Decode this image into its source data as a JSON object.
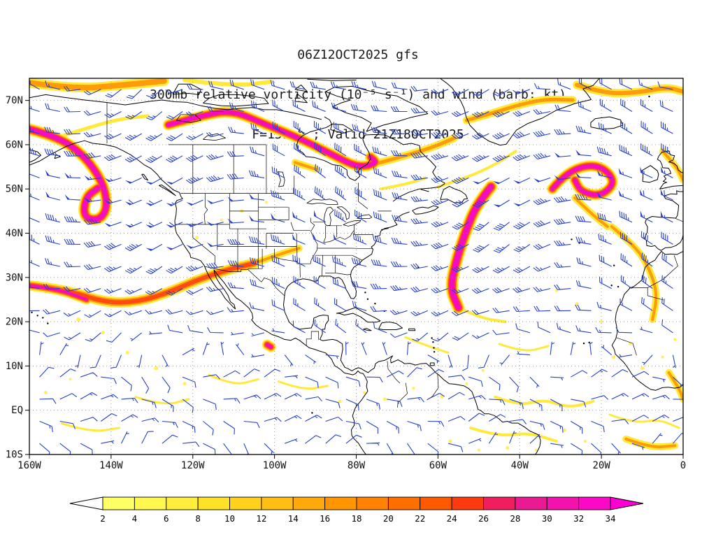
{
  "title": {
    "line1": "06Z12OCT2025 gfs",
    "line2": "300mb relative vorticity (10⁻⁵ s⁻¹) and wind (barb; kt)",
    "line3": "F=159 h ; Valid 21Z18OCT2025"
  },
  "axes": {
    "lat_labels": [
      "70N",
      "60N",
      "50N",
      "40N",
      "30N",
      "20N",
      "10N",
      "EQ",
      "10S"
    ],
    "lat_values": [
      70,
      60,
      50,
      40,
      30,
      20,
      10,
      0,
      -10
    ],
    "lon_labels": [
      "160W",
      "140W",
      "120W",
      "100W",
      "80W",
      "60W",
      "40W",
      "20W",
      "0"
    ],
    "lon_values": [
      -160,
      -140,
      -120,
      -100,
      -80,
      -60,
      -40,
      -20,
      0
    ],
    "lat_range": [
      -10,
      75
    ],
    "lon_range": [
      -160,
      0
    ]
  },
  "colorbar": {
    "labels": [
      "2",
      "4",
      "6",
      "8",
      "10",
      "12",
      "14",
      "16",
      "18",
      "20",
      "22",
      "24",
      "26",
      "28",
      "30",
      "32",
      "34"
    ],
    "levels": [
      2,
      4,
      6,
      8,
      10,
      12,
      14,
      16,
      18,
      20,
      22,
      24,
      26,
      28,
      30,
      32,
      34
    ],
    "colors": [
      "#ffff66",
      "#fff84e",
      "#ffee3c",
      "#ffe228",
      "#ffd21e",
      "#ffbe14",
      "#ffaa0a",
      "#ff9600",
      "#ff8200",
      "#ff6e00",
      "#ff5a00",
      "#ff3a10",
      "#f01e5f",
      "#e91a92",
      "#f312ae",
      "#fd08c6"
    ],
    "under_color": "#ffffff",
    "over_color": "#ff00d4"
  },
  "style": {
    "barb_color": "#2840cc",
    "coast_color": "#000000",
    "grid_color": "#909090",
    "frame_color": "#000000",
    "vort_yellow": "#ffe93a",
    "vort_orange": "#ff9b08",
    "vort_red": "#ff4a10",
    "vort_magenta": "#f50cc0"
  },
  "chart_data": {
    "type": "heatmap",
    "model_run": "06Z12OCT2025 gfs",
    "field": "300mb relative vorticity",
    "units": "10⁻⁵ s⁻¹",
    "wind": "barb (kt)",
    "forecast_hour": 159,
    "valid": "21Z18OCT2025",
    "lat_range": [
      -10,
      75
    ],
    "lon_range": [
      -160,
      0
    ],
    "shaded_levels": [
      2,
      4,
      6,
      8,
      10,
      12,
      14,
      16,
      18,
      20,
      22,
      24,
      26,
      28,
      30,
      32,
      34
    ],
    "legend_position": "bottom",
    "grid": true,
    "features": [
      {
        "name": "arctic-band-west",
        "intensity": 2,
        "width": 8,
        "path": [
          [
            -160,
            74
          ],
          [
            -149,
            72.6
          ],
          [
            -138,
            73.4
          ],
          [
            -127,
            74.4
          ]
        ]
      },
      {
        "name": "arctic-band-center",
        "intensity": 1,
        "width": 6,
        "path": [
          [
            -122,
            74.6
          ],
          [
            -110,
            73.2
          ],
          [
            -101,
            74.2
          ]
        ]
      },
      {
        "name": "gulf-of-alaska-hook",
        "intensity": 4,
        "width": 7,
        "path": [
          [
            -160,
            63.5
          ],
          [
            -153,
            61.8
          ],
          [
            -146.5,
            57.5
          ],
          [
            -142,
            51.5
          ],
          [
            -140.8,
            45.8
          ],
          [
            -143,
            42.8
          ],
          [
            -146.8,
            43.6
          ],
          [
            -146.2,
            48.2
          ],
          [
            -143.2,
            50.2
          ]
        ]
      },
      {
        "name": "alaska-interior-band",
        "intensity": 1,
        "width": 5,
        "path": [
          [
            -152,
            62
          ],
          [
            -145,
            64
          ],
          [
            -138,
            65.8
          ],
          [
            -131,
            66.5
          ]
        ]
      },
      {
        "name": "canada-arc",
        "intensity": 4,
        "width": 6,
        "path": [
          [
            -126,
            64.5
          ],
          [
            -118,
            66.5
          ],
          [
            -110.5,
            67.8
          ],
          [
            -102,
            64.5
          ],
          [
            -94,
            61.5
          ],
          [
            -86,
            57.8
          ],
          [
            -79.5,
            54.8
          ],
          [
            -74.8,
            55.8
          ],
          [
            -76.5,
            57.2
          ]
        ]
      },
      {
        "name": "canada-arc-tail",
        "intensity": 2,
        "width": 5,
        "path": [
          [
            -74.8,
            55.8
          ],
          [
            -68,
            57.5
          ],
          [
            -61,
            59.5
          ],
          [
            -56,
            61.5
          ]
        ]
      },
      {
        "name": "greenland-south-band",
        "intensity": 2,
        "width": 5,
        "path": [
          [
            -53,
            65.5
          ],
          [
            -47,
            67
          ],
          [
            -41,
            68.8
          ],
          [
            -34,
            70.3
          ],
          [
            -27,
            70.1
          ]
        ]
      },
      {
        "name": "greenland-east-band",
        "intensity": 2,
        "width": 6,
        "path": [
          [
            -26,
            73.5
          ],
          [
            -19,
            71.5
          ],
          [
            -11,
            71.8
          ],
          [
            -4,
            73
          ],
          [
            0,
            72
          ]
        ]
      },
      {
        "name": "labrador-yellow",
        "intensity": 1,
        "width": 4,
        "path": [
          [
            -60,
            50.5
          ],
          [
            -53,
            52.5
          ],
          [
            -46,
            55.5
          ],
          [
            -41,
            58.5
          ]
        ]
      },
      {
        "name": "atlantic-trough",
        "intensity": 4,
        "width": 8,
        "path": [
          [
            -47,
            50.5
          ],
          [
            -50.5,
            46.5
          ],
          [
            -53,
            41
          ],
          [
            -55.5,
            34
          ],
          [
            -57,
            27.5
          ],
          [
            -55,
            23.2
          ]
        ]
      },
      {
        "name": "trough-outflow",
        "intensity": 1,
        "width": 4,
        "path": [
          [
            -55,
            23.2
          ],
          [
            -49.5,
            20.8
          ],
          [
            -43.5,
            20
          ]
        ]
      },
      {
        "name": "ne-atlantic-spiral",
        "intensity": 4,
        "width": 6,
        "path": [
          [
            -32,
            50
          ],
          [
            -28.5,
            54
          ],
          [
            -21,
            55.8
          ],
          [
            -16.3,
            51.8
          ],
          [
            -20,
            48.3
          ],
          [
            -25,
            49.3
          ],
          [
            -26.5,
            52
          ]
        ]
      },
      {
        "name": "spiral-tail",
        "intensity": 2,
        "width": 4,
        "path": [
          [
            -26.5,
            48
          ],
          [
            -22,
            44
          ],
          [
            -18.5,
            41.5
          ]
        ]
      },
      {
        "name": "uk-streak",
        "intensity": 2,
        "width": 4,
        "path": [
          [
            -5,
            58.5
          ],
          [
            -1.5,
            55
          ],
          [
            0,
            52
          ]
        ]
      },
      {
        "name": "pacific-jet",
        "intensity": 3,
        "width": 6,
        "path": [
          [
            -160,
            28.2
          ],
          [
            -151,
            27.2
          ],
          [
            -141,
            24.2
          ],
          [
            -133,
            24.6
          ],
          [
            -126,
            26.6
          ],
          [
            -119,
            29.4
          ],
          [
            -112,
            31.6
          ],
          [
            -105,
            33.2
          ]
        ]
      },
      {
        "name": "pacific-jet-core",
        "intensity": 4,
        "width": 4,
        "path": [
          [
            -160,
            28.2
          ],
          [
            -153,
            27.4
          ],
          [
            -146,
            25
          ]
        ]
      },
      {
        "name": "plains-tail",
        "intensity": 2,
        "width": 4,
        "path": [
          [
            -105,
            33.2
          ],
          [
            -99,
            35.2
          ],
          [
            -94,
            36.6
          ]
        ]
      },
      {
        "name": "iberia-africa-streak",
        "intensity": 2,
        "width": 4,
        "path": [
          [
            -17.5,
            41.5
          ],
          [
            -11.5,
            37
          ],
          [
            -8,
            31.5
          ],
          [
            -6.3,
            26
          ],
          [
            -7.5,
            20.5
          ]
        ]
      },
      {
        "name": "mexico-vortex",
        "intensity": 4,
        "width": 5,
        "path": [
          [
            -101.8,
            14.8
          ],
          [
            -100.9,
            14.3
          ]
        ]
      },
      {
        "name": "itcz-atlantic",
        "intensity": 1,
        "width": 4,
        "path": [
          [
            -46,
            3
          ],
          [
            -40,
            1
          ],
          [
            -34,
            2.5
          ],
          [
            -28,
            0.5
          ],
          [
            -22,
            2
          ]
        ]
      },
      {
        "name": "itcz-atlantic2",
        "intensity": 1,
        "width": 3,
        "path": [
          [
            -18,
            -1
          ],
          [
            -12,
            -3
          ],
          [
            -6,
            -2
          ],
          [
            -1,
            -4
          ]
        ]
      },
      {
        "name": "brazil-band",
        "intensity": 1,
        "width": 4,
        "path": [
          [
            -52,
            -4
          ],
          [
            -45,
            -6
          ],
          [
            -38,
            -5
          ],
          [
            -31,
            -7
          ]
        ]
      },
      {
        "name": "s-atlantic-streak",
        "intensity": 2,
        "width": 4,
        "path": [
          [
            -14,
            -6.5
          ],
          [
            -8,
            -8.5
          ],
          [
            -2,
            -8
          ]
        ]
      },
      {
        "name": "gulf-guinea",
        "intensity": 2,
        "width": 4,
        "path": [
          [
            -3.5,
            8.5
          ],
          [
            -1,
            5
          ],
          [
            0,
            2.5
          ]
        ]
      },
      {
        "name": "carib-streak",
        "intensity": 1,
        "width": 3,
        "path": [
          [
            -68,
            16.5
          ],
          [
            -62.5,
            14.5
          ],
          [
            -57.5,
            13
          ]
        ]
      },
      {
        "name": "atl-tropics",
        "intensity": 1,
        "width": 3,
        "path": [
          [
            -45,
            15
          ],
          [
            -39,
            13
          ],
          [
            -33,
            14.5
          ]
        ]
      },
      {
        "name": "epac-streak1",
        "intensity": 1,
        "width": 3,
        "path": [
          [
            -116,
            8
          ],
          [
            -110,
            5.5
          ],
          [
            -104,
            7
          ]
        ]
      },
      {
        "name": "epac-streak2",
        "intensity": 1,
        "width": 3,
        "path": [
          [
            -99,
            6.5
          ],
          [
            -93,
            4.5
          ],
          [
            -87,
            5.5
          ]
        ]
      },
      {
        "name": "cpac-streak1",
        "intensity": 1,
        "width": 3,
        "path": [
          [
            -152,
            -3
          ],
          [
            -145,
            -5
          ],
          [
            -138,
            -4
          ]
        ]
      },
      {
        "name": "cpac-streak2",
        "intensity": 1,
        "width": 3,
        "path": [
          [
            -134,
            3
          ],
          [
            -127,
            1
          ],
          [
            -121,
            2.5
          ]
        ]
      },
      {
        "name": "hudson-spot",
        "intensity": 2,
        "width": 4,
        "path": [
          [
            -95,
            56
          ],
          [
            -90,
            54.5
          ]
        ]
      },
      {
        "name": "quebec-yellow",
        "intensity": 1,
        "width": 4,
        "path": [
          [
            -74,
            50
          ],
          [
            -68,
            51
          ],
          [
            -63,
            52.5
          ]
        ]
      }
    ],
    "speckles": [
      [
        -148,
        20.5,
        3
      ],
      [
        -142,
        17.5,
        2.5
      ],
      [
        -136,
        13,
        2.5
      ],
      [
        -129,
        9.5,
        3
      ],
      [
        -122,
        6,
        2.5
      ],
      [
        -156,
        4,
        2.5
      ],
      [
        -150,
        7,
        2
      ],
      [
        -84,
        2,
        2.5
      ],
      [
        -78,
        4,
        2
      ],
      [
        -73,
        2.5,
        2.5
      ],
      [
        -66,
        5,
        2
      ],
      [
        -59,
        3,
        2.5
      ],
      [
        -53,
        6,
        2
      ],
      [
        -49,
        9,
        2
      ],
      [
        -57,
        -7,
        2.5
      ],
      [
        -50,
        -9,
        2
      ],
      [
        -43,
        -8.5,
        2.5
      ],
      [
        -36,
        -9,
        2
      ],
      [
        -29,
        -4.5,
        2.5
      ],
      [
        -24,
        -7,
        2
      ],
      [
        -17,
        12,
        2.5
      ],
      [
        -13,
        15,
        2
      ],
      [
        -10,
        9.5,
        2.5
      ],
      [
        -5,
        12,
        2
      ],
      [
        -2,
        16,
        2
      ],
      [
        -20,
        20,
        2
      ],
      [
        -26,
        24,
        2.5
      ],
      [
        -31,
        27,
        2
      ],
      [
        -119,
        39,
        2.5
      ],
      [
        -113,
        43,
        2
      ],
      [
        -108,
        45,
        2.5
      ],
      [
        -102,
        47,
        2
      ]
    ]
  }
}
